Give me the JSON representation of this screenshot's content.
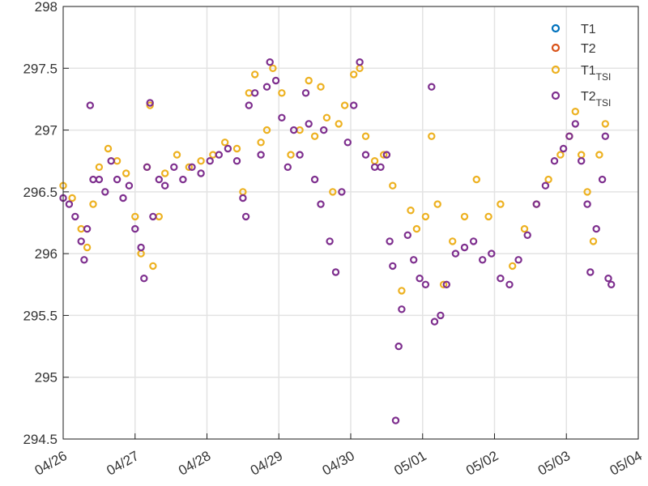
{
  "chart_data": {
    "type": "scatter",
    "title": "",
    "xlabel": "",
    "ylabel": "",
    "grid": true,
    "legend_placement": "top-right",
    "xlim": [
      "04/26",
      "05/04"
    ],
    "ylim": [
      294.5,
      298
    ],
    "y_ticks": [
      {
        "value": 294.5,
        "label": "294.5"
      },
      {
        "value": 295,
        "label": "295"
      },
      {
        "value": 295.5,
        "label": "295.5"
      },
      {
        "value": 296,
        "label": "296"
      },
      {
        "value": 296.5,
        "label": "296.5"
      },
      {
        "value": 297,
        "label": "297"
      },
      {
        "value": 297.5,
        "label": "297.5"
      },
      {
        "value": 298,
        "label": "298"
      }
    ],
    "x_ticks": [
      {
        "value": "04/26",
        "label": "04/26"
      },
      {
        "value": "04/27",
        "label": "04/27"
      },
      {
        "value": "04/28",
        "label": "04/28"
      },
      {
        "value": "04/29",
        "label": "04/29"
      },
      {
        "value": "04/30",
        "label": "04/30"
      },
      {
        "value": "05/01",
        "label": "05/01"
      },
      {
        "value": "05/02",
        "label": "05/02"
      },
      {
        "value": "05/03",
        "label": "05/03"
      },
      {
        "value": "05/04",
        "label": "05/04"
      }
    ],
    "series": [
      {
        "name": "T1",
        "sub": "",
        "color": "#0072BD",
        "points": []
      },
      {
        "name": "T2",
        "sub": "",
        "color": "#D95319",
        "points": []
      },
      {
        "name": "T1",
        "sub": "TSI",
        "color": "#EDB120",
        "points": [
          [
            "04/26 00:00",
            296.55
          ],
          [
            "04/26 03:00",
            296.45
          ],
          [
            "04/26 06:00",
            296.2
          ],
          [
            "04/26 08:00",
            296.05
          ],
          [
            "04/26 10:00",
            296.4
          ],
          [
            "04/26 12:00",
            296.7
          ],
          [
            "04/26 15:00",
            296.85
          ],
          [
            "04/26 18:00",
            296.75
          ],
          [
            "04/26 21:00",
            296.65
          ],
          [
            "04/27 00:00",
            296.3
          ],
          [
            "04/27 02:00",
            296.0
          ],
          [
            "04/27 04:00",
            296.7
          ],
          [
            "04/27 05:00",
            297.2
          ],
          [
            "04/27 06:00",
            295.9
          ],
          [
            "04/27 08:00",
            296.3
          ],
          [
            "04/27 10:00",
            296.65
          ],
          [
            "04/27 14:00",
            296.8
          ],
          [
            "04/27 18:00",
            296.7
          ],
          [
            "04/27 22:00",
            296.75
          ],
          [
            "04/28 02:00",
            296.8
          ],
          [
            "04/28 06:00",
            296.9
          ],
          [
            "04/28 10:00",
            296.85
          ],
          [
            "04/28 12:00",
            296.5
          ],
          [
            "04/28 14:00",
            297.3
          ],
          [
            "04/28 16:00",
            297.45
          ],
          [
            "04/28 18:00",
            296.9
          ],
          [
            "04/28 20:00",
            297.0
          ],
          [
            "04/28 22:00",
            297.5
          ],
          [
            "04/29 01:00",
            297.3
          ],
          [
            "04/29 04:00",
            296.8
          ],
          [
            "04/29 07:00",
            297.0
          ],
          [
            "04/29 10:00",
            297.4
          ],
          [
            "04/29 12:00",
            296.95
          ],
          [
            "04/29 14:00",
            297.35
          ],
          [
            "04/29 16:00",
            297.1
          ],
          [
            "04/29 18:00",
            296.5
          ],
          [
            "04/29 20:00",
            297.05
          ],
          [
            "04/29 22:00",
            297.2
          ],
          [
            "04/30 01:00",
            297.45
          ],
          [
            "04/30 03:00",
            297.5
          ],
          [
            "04/30 05:00",
            296.95
          ],
          [
            "04/30 08:00",
            296.75
          ],
          [
            "04/30 11:00",
            296.8
          ],
          [
            "04/30 14:00",
            296.55
          ],
          [
            "04/30 17:00",
            295.7
          ],
          [
            "04/30 20:00",
            296.35
          ],
          [
            "04/30 22:00",
            296.2
          ],
          [
            "05/01 01:00",
            296.3
          ],
          [
            "05/01 03:00",
            296.95
          ],
          [
            "05/01 05:00",
            296.4
          ],
          [
            "05/01 07:00",
            295.75
          ],
          [
            "05/01 10:00",
            296.1
          ],
          [
            "05/01 14:00",
            296.3
          ],
          [
            "05/01 18:00",
            296.6
          ],
          [
            "05/01 22:00",
            296.3
          ],
          [
            "05/02 02:00",
            296.4
          ],
          [
            "05/02 06:00",
            295.9
          ],
          [
            "05/02 10:00",
            296.2
          ],
          [
            "05/02 14:00",
            296.4
          ],
          [
            "05/02 18:00",
            296.6
          ],
          [
            "05/02 22:00",
            296.8
          ],
          [
            "05/03 01:00",
            296.95
          ],
          [
            "05/03 03:00",
            297.15
          ],
          [
            "05/03 05:00",
            296.8
          ],
          [
            "05/03 07:00",
            296.5
          ],
          [
            "05/03 09:00",
            296.1
          ],
          [
            "05/03 11:00",
            296.8
          ],
          [
            "05/03 13:00",
            297.05
          ]
        ]
      },
      {
        "name": "T2",
        "sub": "TSI",
        "color": "#7E2F8E",
        "points": [
          [
            "04/26 00:00",
            296.45
          ],
          [
            "04/26 02:00",
            296.4
          ],
          [
            "04/26 04:00",
            296.3
          ],
          [
            "04/26 06:00",
            296.1
          ],
          [
            "04/26 07:00",
            295.95
          ],
          [
            "04/26 08:00",
            296.2
          ],
          [
            "04/26 09:00",
            297.2
          ],
          [
            "04/26 10:00",
            296.6
          ],
          [
            "04/26 12:00",
            296.6
          ],
          [
            "04/26 14:00",
            296.5
          ],
          [
            "04/26 16:00",
            296.75
          ],
          [
            "04/26 18:00",
            296.6
          ],
          [
            "04/26 20:00",
            296.45
          ],
          [
            "04/26 22:00",
            296.55
          ],
          [
            "04/27 00:00",
            296.2
          ],
          [
            "04/27 02:00",
            296.05
          ],
          [
            "04/27 03:00",
            295.8
          ],
          [
            "04/27 04:00",
            296.7
          ],
          [
            "04/27 05:00",
            297.22
          ],
          [
            "04/27 06:00",
            296.3
          ],
          [
            "04/27 08:00",
            296.6
          ],
          [
            "04/27 10:00",
            296.55
          ],
          [
            "04/27 13:00",
            296.7
          ],
          [
            "04/27 16:00",
            296.6
          ],
          [
            "04/27 19:00",
            296.7
          ],
          [
            "04/27 22:00",
            296.65
          ],
          [
            "04/28 01:00",
            296.75
          ],
          [
            "04/28 04:00",
            296.8
          ],
          [
            "04/28 07:00",
            296.85
          ],
          [
            "04/28 10:00",
            296.75
          ],
          [
            "04/28 12:00",
            296.45
          ],
          [
            "04/28 13:00",
            296.3
          ],
          [
            "04/28 14:00",
            297.2
          ],
          [
            "04/28 16:00",
            297.3
          ],
          [
            "04/28 18:00",
            296.8
          ],
          [
            "04/28 20:00",
            297.35
          ],
          [
            "04/28 21:00",
            297.55
          ],
          [
            "04/28 23:00",
            297.4
          ],
          [
            "04/29 01:00",
            297.1
          ],
          [
            "04/29 03:00",
            296.7
          ],
          [
            "04/29 05:00",
            297.0
          ],
          [
            "04/29 07:00",
            296.8
          ],
          [
            "04/29 09:00",
            297.3
          ],
          [
            "04/29 10:00",
            297.05
          ],
          [
            "04/29 12:00",
            296.6
          ],
          [
            "04/29 14:00",
            296.4
          ],
          [
            "04/29 15:00",
            297.0
          ],
          [
            "04/29 17:00",
            296.1
          ],
          [
            "04/29 19:00",
            295.85
          ],
          [
            "04/29 21:00",
            296.5
          ],
          [
            "04/29 23:00",
            296.9
          ],
          [
            "04/30 01:00",
            297.2
          ],
          [
            "04/30 03:00",
            297.55
          ],
          [
            "04/30 05:00",
            296.8
          ],
          [
            "04/30 08:00",
            296.7
          ],
          [
            "04/30 10:00",
            296.7
          ],
          [
            "04/30 12:00",
            296.8
          ],
          [
            "04/30 13:00",
            296.1
          ],
          [
            "04/30 14:00",
            295.9
          ],
          [
            "04/30 15:00",
            294.65
          ],
          [
            "04/30 16:00",
            295.25
          ],
          [
            "04/30 17:00",
            295.55
          ],
          [
            "04/30 19:00",
            296.15
          ],
          [
            "04/30 21:00",
            295.95
          ],
          [
            "04/30 23:00",
            295.8
          ],
          [
            "05/01 01:00",
            295.75
          ],
          [
            "05/01 03:00",
            297.35
          ],
          [
            "05/01 04:00",
            295.45
          ],
          [
            "05/01 06:00",
            295.5
          ],
          [
            "05/01 08:00",
            295.75
          ],
          [
            "05/01 11:00",
            296.0
          ],
          [
            "05/01 14:00",
            296.05
          ],
          [
            "05/01 17:00",
            296.1
          ],
          [
            "05/01 20:00",
            295.95
          ],
          [
            "05/01 23:00",
            296.0
          ],
          [
            "05/02 02:00",
            295.8
          ],
          [
            "05/02 05:00",
            295.75
          ],
          [
            "05/02 08:00",
            295.95
          ],
          [
            "05/02 11:00",
            296.15
          ],
          [
            "05/02 14:00",
            296.4
          ],
          [
            "05/02 17:00",
            296.55
          ],
          [
            "05/02 20:00",
            296.75
          ],
          [
            "05/02 23:00",
            296.85
          ],
          [
            "05/03 01:00",
            296.95
          ],
          [
            "05/03 03:00",
            297.05
          ],
          [
            "05/03 05:00",
            296.75
          ],
          [
            "05/03 07:00",
            296.4
          ],
          [
            "05/03 08:00",
            295.85
          ],
          [
            "05/03 10:00",
            296.2
          ],
          [
            "05/03 12:00",
            296.6
          ],
          [
            "05/03 13:00",
            296.95
          ],
          [
            "05/03 14:00",
            295.8
          ],
          [
            "05/03 15:00",
            295.75
          ]
        ]
      }
    ]
  }
}
